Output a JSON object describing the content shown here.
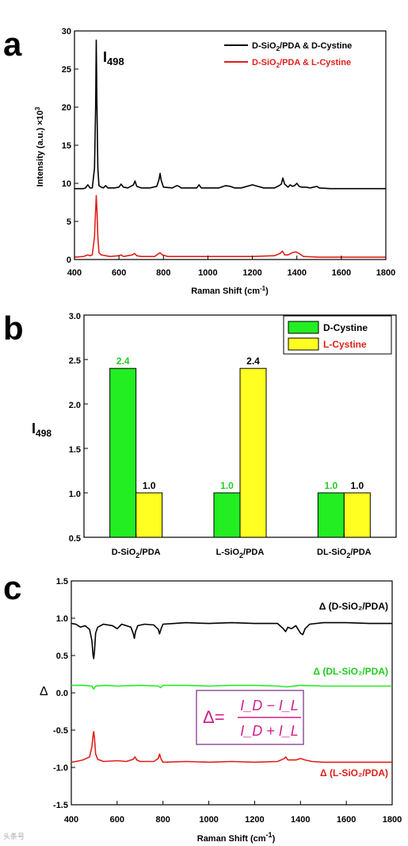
{
  "chart_data": [
    {
      "panel": "a",
      "type": "line",
      "xlabel": "Raman Shift (cm",
      "xlabel_sup": "-1",
      "xlabel_end": ")",
      "ylabel": "Intensity (a.u.) ×10",
      "ylabel_sup": "3",
      "xlim": [
        400,
        1800
      ],
      "ylim": [
        0,
        30
      ],
      "xticks": [
        "400",
        "600",
        "800",
        "1000",
        "1200",
        "1400",
        "1600",
        "1800"
      ],
      "yticks": [
        "0",
        "5",
        "10",
        "15",
        "20",
        "25",
        "30"
      ],
      "annotation": {
        "text": "I",
        "sub": "498"
      },
      "legend_position": "top-right",
      "series": [
        {
          "name": "D-SiO2/PDA & D-Cystine",
          "name_main": "D-SiO",
          "name_sub": "2",
          "name_end": "/PDA & D-Cystine",
          "color": "#000000",
          "x": [
            400,
            440,
            450,
            460,
            470,
            480,
            490,
            495,
            498,
            501,
            505,
            510,
            520,
            530,
            540,
            550,
            580,
            600,
            610,
            620,
            640,
            665,
            672,
            680,
            700,
            740,
            770,
            780,
            785,
            790,
            800,
            840,
            860,
            870,
            880,
            900,
            950,
            960,
            970,
            1000,
            1050,
            1080,
            1100,
            1120,
            1150,
            1200,
            1250,
            1300,
            1320,
            1330,
            1337,
            1345,
            1360,
            1370,
            1380,
            1390,
            1400,
            1410,
            1420,
            1440,
            1460,
            1490,
            1500,
            1550,
            1600,
            1650,
            1700,
            1750,
            1800
          ],
          "y": [
            9.3,
            9.3,
            9.4,
            9.8,
            9.4,
            9.4,
            12.0,
            20.0,
            28.8,
            20.0,
            12.0,
            9.7,
            9.5,
            9.4,
            9.7,
            9.4,
            9.4,
            9.5,
            9.9,
            9.5,
            9.4,
            9.8,
            10.3,
            9.6,
            9.4,
            9.4,
            9.6,
            10.5,
            11.3,
            10.4,
            9.5,
            9.4,
            9.7,
            9.6,
            9.4,
            9.4,
            9.4,
            9.8,
            9.4,
            9.4,
            9.4,
            9.7,
            9.6,
            9.4,
            9.4,
            9.8,
            9.4,
            9.4,
            9.7,
            9.9,
            10.7,
            9.9,
            9.5,
            9.8,
            9.6,
            9.7,
            10.0,
            9.6,
            9.5,
            9.5,
            9.4,
            9.6,
            9.4,
            9.3,
            9.3,
            9.3,
            9.3,
            9.3,
            9.3
          ]
        },
        {
          "name": "D-SiO2/PDA & L-Cystine",
          "name_main": "D-SiO",
          "name_sub": "2",
          "name_end": "/PDA & L-Cystine",
          "color": "#e0201a",
          "x": [
            400,
            440,
            450,
            460,
            470,
            480,
            490,
            495,
            498,
            501,
            505,
            510,
            520,
            540,
            560,
            600,
            610,
            620,
            660,
            670,
            680,
            700,
            760,
            775,
            785,
            795,
            820,
            900,
            1000,
            1100,
            1200,
            1300,
            1325,
            1335,
            1345,
            1360,
            1380,
            1395,
            1410,
            1430,
            1500,
            1600,
            1700,
            1800
          ],
          "y": [
            0.3,
            0.4,
            0.5,
            0.6,
            0.5,
            0.6,
            3.0,
            6.5,
            8.4,
            6.5,
            3.0,
            0.9,
            0.6,
            0.5,
            0.4,
            0.5,
            0.6,
            0.4,
            0.6,
            0.8,
            0.5,
            0.4,
            0.4,
            0.7,
            0.9,
            0.6,
            0.4,
            0.4,
            0.4,
            0.4,
            0.4,
            0.5,
            0.8,
            1.1,
            0.6,
            0.6,
            0.9,
            1.0,
            0.8,
            0.4,
            0.3,
            0.3,
            0.3,
            0.3
          ]
        }
      ]
    },
    {
      "panel": "b",
      "type": "bar",
      "ylabel": "I",
      "ylabel_sub": "498",
      "ylim": [
        0.5,
        3.0
      ],
      "yticks": [
        "0.5",
        "1.0",
        "1.5",
        "2.0",
        "2.5",
        "3.0"
      ],
      "categories": [
        {
          "main": "D-SiO",
          "sub": "2",
          "end": "/PDA"
        },
        {
          "main": "L-SiO",
          "sub": "2",
          "end": "/PDA"
        },
        {
          "main": "DL-SiO",
          "sub": "2",
          "end": "/PDA"
        }
      ],
      "legend_position": "top-right",
      "series": [
        {
          "name": "D-Cystine",
          "color": "#22ee22",
          "label_color": "#22cc22",
          "values": [
            2.4,
            1.0,
            1.0
          ],
          "labels": [
            "2.4",
            "1.0",
            "1.0"
          ],
          "label_colors": [
            "#22cc22",
            "#22cc22",
            "#22cc22"
          ]
        },
        {
          "name": "L-Cystine",
          "color": "#ffff22",
          "label_color": "#e0201a",
          "values": [
            1.0,
            2.4,
            1.0
          ],
          "labels": [
            "1.0",
            "2.4",
            "1.0"
          ],
          "label_colors": [
            "#000000",
            "#000000",
            "#000000"
          ]
        }
      ]
    },
    {
      "panel": "c",
      "type": "line",
      "xlabel": "Raman Shift (cm",
      "xlabel_sup": "-1",
      "xlabel_end": ")",
      "ylabel": "Δ",
      "xlim": [
        400,
        1800
      ],
      "ylim": [
        -1.5,
        1.5
      ],
      "xticks": [
        "400",
        "600",
        "800",
        "1000",
        "1200",
        "1400",
        "1600",
        "1800"
      ],
      "yticks": [
        "-1.5",
        "-1.0",
        "-0.5",
        "0.0",
        "0.5",
        "1.0",
        "1.5"
      ],
      "formula": {
        "lhs": "Δ=",
        "num": "I_D − I_L",
        "den": "I_D + I_L"
      },
      "series": [
        {
          "name": "Δ (D-SiO₂/PDA)",
          "color": "#000000",
          "label_color": "#000000",
          "x": [
            400,
            420,
            440,
            460,
            480,
            490,
            495,
            498,
            501,
            506,
            515,
            540,
            580,
            600,
            620,
            640,
            660,
            670,
            675,
            680,
            690,
            720,
            760,
            780,
            785,
            792,
            800,
            850,
            900,
            1000,
            1100,
            1200,
            1300,
            1325,
            1335,
            1345,
            1360,
            1380,
            1400,
            1410,
            1420,
            1440,
            1500,
            1600,
            1700,
            1800
          ],
          "y": [
            0.93,
            0.92,
            0.88,
            0.9,
            0.85,
            0.7,
            0.5,
            0.46,
            0.55,
            0.8,
            0.88,
            0.92,
            0.9,
            0.86,
            0.92,
            0.9,
            0.88,
            0.8,
            0.73,
            0.82,
            0.9,
            0.92,
            0.91,
            0.85,
            0.79,
            0.86,
            0.92,
            0.93,
            0.94,
            0.93,
            0.94,
            0.93,
            0.93,
            0.86,
            0.82,
            0.88,
            0.86,
            0.9,
            0.8,
            0.78,
            0.86,
            0.92,
            0.94,
            0.94,
            0.93,
            0.93
          ]
        },
        {
          "name": "Δ (DL-SiO₂/PDA)",
          "color": "#22ee22",
          "label_color": "#22cc22",
          "x": [
            400,
            450,
            490,
            498,
            506,
            550,
            600,
            700,
            780,
            790,
            800,
            900,
            1000,
            1100,
            1200,
            1300,
            1340,
            1400,
            1500,
            1600,
            1700,
            1800
          ],
          "y": [
            0.1,
            0.1,
            0.09,
            0.05,
            0.09,
            0.1,
            0.09,
            0.1,
            0.09,
            0.07,
            0.1,
            0.1,
            0.09,
            0.1,
            0.1,
            0.09,
            0.08,
            0.1,
            0.09,
            0.09,
            0.09,
            0.09
          ]
        },
        {
          "name": "Δ (L-SiO₂/PDA)",
          "color": "#e0201a",
          "label_color": "#e0201a",
          "x": [
            400,
            420,
            450,
            480,
            490,
            495,
            498,
            501,
            506,
            515,
            540,
            600,
            640,
            670,
            678,
            686,
            700,
            760,
            780,
            785,
            792,
            800,
            900,
            1000,
            1100,
            1200,
            1300,
            1330,
            1336,
            1345,
            1380,
            1400,
            1420,
            1450,
            1500,
            1600,
            1700,
            1800
          ],
          "y": [
            -0.93,
            -0.92,
            -0.9,
            -0.86,
            -0.72,
            -0.57,
            -0.52,
            -0.6,
            -0.82,
            -0.89,
            -0.92,
            -0.91,
            -0.92,
            -0.89,
            -0.86,
            -0.9,
            -0.92,
            -0.92,
            -0.88,
            -0.82,
            -0.89,
            -0.93,
            -0.92,
            -0.93,
            -0.92,
            -0.93,
            -0.92,
            -0.88,
            -0.86,
            -0.9,
            -0.9,
            -0.88,
            -0.9,
            -0.92,
            -0.93,
            -0.93,
            -0.93,
            -0.93
          ]
        }
      ]
    }
  ],
  "watermark": "头条号"
}
